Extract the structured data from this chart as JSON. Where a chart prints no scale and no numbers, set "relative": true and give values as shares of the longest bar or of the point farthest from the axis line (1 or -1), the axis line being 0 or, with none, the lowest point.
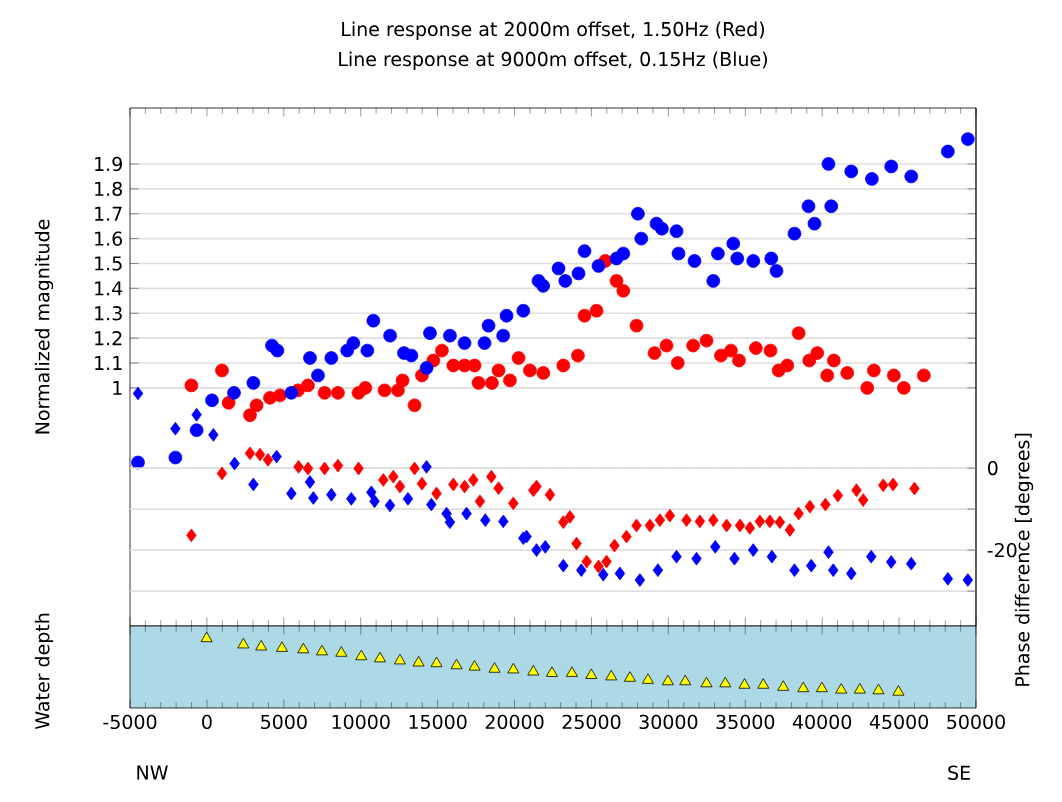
{
  "chart_data": [
    {
      "type": "scatter",
      "title": "Line response at 2000m offset, 1.50Hz (Red)",
      "subtitle": "Line response at 9000m offset, 0.15Hz (Blue)",
      "ylabel": "Normalized magnitude",
      "y2label": "Phase difference [degrees]",
      "xlim": [
        -5000,
        50000
      ],
      "xticks": [
        -5000,
        0,
        5000,
        10000,
        15000,
        20000,
        25000,
        30000,
        35000,
        40000,
        45000,
        50000
      ],
      "ylim": [
        0.043,
        2.125
      ],
      "yticks": [
        1,
        1.1,
        1.2,
        1.3,
        1.4,
        1.5,
        1.6,
        1.7,
        1.8,
        1.9
      ],
      "y2lim": [
        -38.5,
        87.8
      ],
      "y2ticks": [
        {
          "value": -30,
          "label": null
        },
        -20,
        {
          "value": -10,
          "label": null
        },
        0
      ],
      "grid": "y",
      "tick_labels": "y",
      "ref_lines": [
        {
          "axis": "y2",
          "value": 0,
          "color": "#000000",
          "line_style": "dotted"
        }
      ],
      "series": [
        {
          "color": "#ff0000",
          "marker": "circle",
          "x": [
            -1010,
            980,
            1410,
            2800,
            3230,
            4100,
            4750,
            5920,
            6570,
            7650,
            8520,
            9860,
            10300,
            11550,
            12420,
            12720,
            13500,
            13980,
            14720,
            15280,
            16020,
            16750,
            17400,
            17660,
            18530,
            18960,
            19700,
            20260,
            21000,
            21870,
            23170,
            24120,
            24550,
            25330,
            25900,
            26630,
            27070,
            27930,
            29100,
            29880,
            30610,
            31610,
            32480,
            33420,
            34070,
            34590,
            35690,
            36640,
            37170,
            37730,
            38470,
            39160,
            39680,
            40330,
            40760,
            41630,
            42930,
            43360,
            44660,
            45310,
            46610
          ],
          "values": [
            1.01,
            1.07,
            0.94,
            0.89,
            0.93,
            0.96,
            0.97,
            0.99,
            1.01,
            0.98,
            0.98,
            0.98,
            1.0,
            0.99,
            0.99,
            1.03,
            0.93,
            1.05,
            1.11,
            1.15,
            1.09,
            1.09,
            1.09,
            1.02,
            1.02,
            1.07,
            1.03,
            1.12,
            1.07,
            1.06,
            1.09,
            1.13,
            1.29,
            1.31,
            1.51,
            1.43,
            1.39,
            1.25,
            1.14,
            1.17,
            1.1,
            1.17,
            1.19,
            1.13,
            1.15,
            1.11,
            1.16,
            1.15,
            1.07,
            1.09,
            1.22,
            1.11,
            1.14,
            1.05,
            1.11,
            1.06,
            1.0,
            1.07,
            1.05,
            1.0,
            1.05
          ]
        },
        {
          "color": "#0000ff",
          "marker": "circle",
          "x": [
            -4480,
            -2050,
            -670,
            330,
            1760,
            3020,
            4230,
            4580,
            5490,
            6700,
            7220,
            8090,
            9120,
            9520,
            10430,
            10820,
            11910,
            12810,
            13290,
            14280,
            14500,
            15800,
            16750,
            18050,
            18310,
            19260,
            19480,
            20570,
            21560,
            21860,
            22860,
            23300,
            24160,
            24550,
            25460,
            26630,
            27070,
            28020,
            28240,
            29230,
            29580,
            30530,
            30660,
            31700,
            32920,
            33220,
            34220,
            34480,
            35520,
            36690,
            37030,
            38200,
            39110,
            39500,
            40590,
            40410,
            41890,
            43230,
            44490,
            45790,
            48170,
            49470
          ],
          "values": [
            0.7,
            0.72,
            0.83,
            0.95,
            0.98,
            1.02,
            1.17,
            1.15,
            0.98,
            1.12,
            1.05,
            1.12,
            1.15,
            1.18,
            1.15,
            1.27,
            1.21,
            1.14,
            1.13,
            1.08,
            1.22,
            1.21,
            1.18,
            1.18,
            1.25,
            1.21,
            1.29,
            1.31,
            1.43,
            1.41,
            1.48,
            1.43,
            1.46,
            1.55,
            1.49,
            1.52,
            1.54,
            1.7,
            1.6,
            1.66,
            1.64,
            1.63,
            1.54,
            1.51,
            1.43,
            1.54,
            1.58,
            1.52,
            1.51,
            1.52,
            1.47,
            1.62,
            1.73,
            1.66,
            1.73,
            1.9,
            1.87,
            1.84,
            1.89,
            1.85,
            1.95,
            2.0
          ]
        },
        {
          "color": "#ff0000",
          "marker": "diamond",
          "axis": "y2",
          "x": [
            -1010,
            980,
            1720,
            2800,
            3450,
            3970,
            5960,
            6570,
            7650,
            8520,
            9860,
            11470,
            12120,
            12550,
            13500,
            13980,
            14930,
            16020,
            16750,
            17320,
            17750,
            18490,
            18960,
            19920,
            21220,
            21430,
            22300,
            23170,
            23600,
            24030,
            24690,
            25460,
            25980,
            26500,
            27280,
            27930,
            28800,
            29450,
            30100,
            31180,
            32050,
            32920,
            33790,
            34660,
            35300,
            35950,
            36600,
            37250,
            37900,
            38470,
            39200,
            40210,
            41020,
            42230,
            42670,
            43970,
            44610,
            46000
          ],
          "values": [
            -16.4,
            -1.3,
            null,
            3.6,
            3.3,
            2.0,
            0.3,
            -0.1,
            -0.1,
            0.6,
            -0.1,
            -2.9,
            -2.1,
            -4.5,
            -0.1,
            -3.8,
            -6.2,
            -4.0,
            -4.5,
            -2.9,
            -8.1,
            -2.1,
            -4.9,
            -8.6,
            -5.4,
            -4.5,
            -6.5,
            -13.2,
            -11.9,
            -18.4,
            -22.8,
            -24.0,
            -22.8,
            -18.9,
            -16.7,
            -14.0,
            -14.0,
            -12.7,
            -11.6,
            -12.7,
            -13.0,
            -12.7,
            -14.0,
            -14.0,
            -14.6,
            -13.0,
            -13.0,
            -13.2,
            -15.1,
            -11.1,
            -9.4,
            -8.9,
            -6.7,
            -5.4,
            -7.8,
            -4.2,
            -4.0,
            -5.0
          ]
        },
        {
          "color": "#0000ff",
          "marker": "diamond",
          "axis": "y2",
          "x": [
            -4480,
            -2050,
            -670,
            420,
            1800,
            3020,
            4530,
            5490,
            6700,
            6920,
            8090,
            9390,
            10690,
            10900,
            11900,
            13070,
            14280,
            14590,
            15580,
            15800,
            16880,
            18100,
            19270,
            20570,
            20780,
            21430,
            22000,
            23170,
            24340,
            25770,
            26850,
            28150,
            29320,
            30530,
            31830,
            33050,
            34300,
            35520,
            36730,
            38200,
            39290,
            40410,
            40720,
            41890,
            43190,
            44490,
            45790,
            48170,
            49470
          ],
          "values": [
            18.2,
            9.6,
            13.0,
            8.1,
            1.1,
            -4.0,
            2.8,
            -6.2,
            -3.4,
            -7.3,
            -6.5,
            -7.5,
            -5.9,
            -8.1,
            -9.1,
            -7.5,
            0.3,
            -8.9,
            -11.1,
            -13.2,
            -11.1,
            -12.7,
            -13.0,
            -17.1,
            -16.7,
            -20.0,
            -19.2,
            -23.8,
            -24.9,
            -26.0,
            -25.7,
            -27.3,
            -24.9,
            -21.6,
            -22.1,
            -19.2,
            -22.1,
            -20.0,
            -21.6,
            -24.9,
            -23.8,
            -20.5,
            -24.9,
            -25.7,
            -21.6,
            -22.9,
            -23.3,
            -27.0,
            -27.3
          ]
        }
      ]
    },
    {
      "type": "scatter",
      "ylabel": "Water depth",
      "relative": true,
      "marker": "triangle",
      "tick_labels": "x",
      "xlim": [
        -5000,
        50000
      ],
      "xticks": [
        -5000,
        0,
        5000,
        10000,
        15000,
        20000,
        25000,
        30000,
        35000,
        40000,
        45000,
        50000
      ],
      "bands": [
        {
          "axis": "y",
          "from": 0,
          "to": 1.18,
          "color": "#add8e6"
        }
      ],
      "annotations": [
        "NW",
        "SE"
      ],
      "series": [
        {
          "color": "#ffff00",
          "x": [
            -20,
            2370,
            3530,
            4880,
            6270,
            7480,
            8740,
            10040,
            11250,
            12550,
            13760,
            14930,
            16230,
            17400,
            18700,
            19920,
            21220,
            22430,
            23730,
            24990,
            26290,
            27500,
            28670,
            29970,
            31100,
            32480,
            33700,
            34950,
            36170,
            37470,
            38770,
            39980,
            41240,
            42450,
            43660,
            44960
          ],
          "values": [
            1.0,
            0.91,
            0.88,
            0.86,
            0.84,
            0.81,
            0.79,
            0.74,
            0.71,
            0.68,
            0.65,
            0.64,
            0.61,
            0.59,
            0.56,
            0.55,
            0.52,
            0.5,
            0.5,
            0.47,
            0.45,
            0.43,
            0.4,
            0.38,
            0.38,
            0.35,
            0.35,
            0.33,
            0.33,
            0.3,
            0.28,
            0.28,
            0.26,
            0.26,
            0.25,
            0.23
          ]
        }
      ]
    }
  ]
}
